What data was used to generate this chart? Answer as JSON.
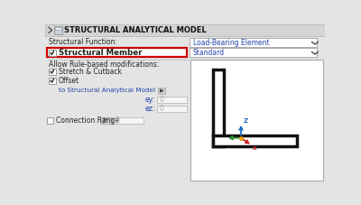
{
  "bg_color": "#e4e4e4",
  "white": "#ffffff",
  "light_gray": "#f0f0f0",
  "title_bar_color": "#d4d4d4",
  "text_color": "#222222",
  "blue_text": "#2244aa",
  "title_text": "STRUCTURAL ANALYTICAL MODEL",
  "struct_func_label": "Structural Function:",
  "dropdown1_text": "Load-Bearing Element",
  "struct_member_text": "Structural Member",
  "dropdown2_text": "Standard",
  "allow_rule_text": "Allow Rule-based modifications:",
  "stretch_text": "Stretch & Cutback",
  "offset_text": "Offset",
  "to_struct_text": "to Structural Analytical Model",
  "ey_label": "ey:",
  "ez_label": "ez:",
  "conn_range_text": "Connection Range",
  "zero_text": "0",
  "red_border": "#cc0000",
  "border_gray": "#aaaaaa",
  "check_border": "#999999",
  "input_bg": "#f5f5f5",
  "drop_arrow": "#555555",
  "panel_border": "#bbbbbb"
}
